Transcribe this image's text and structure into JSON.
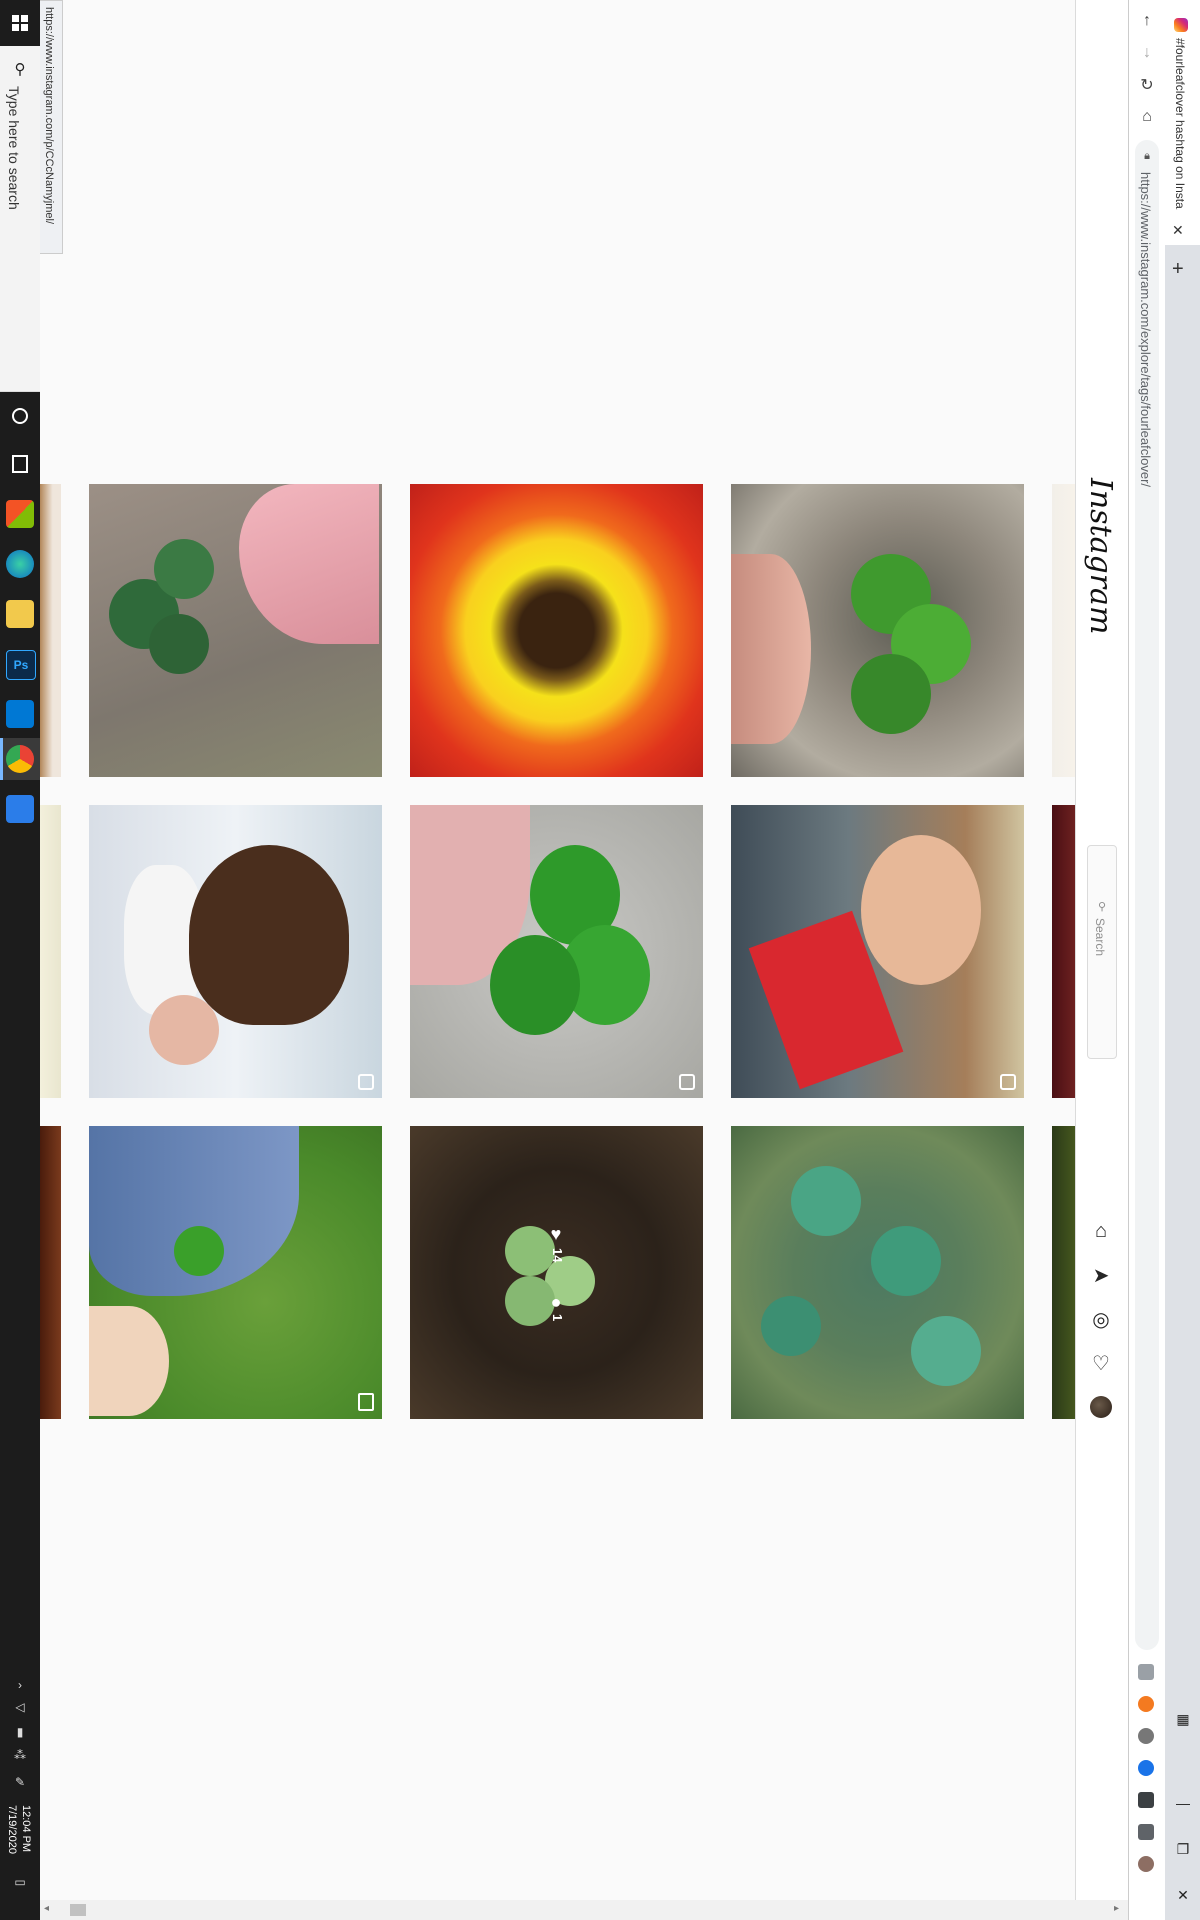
{
  "taskbar": {
    "search_placeholder": "Type here to search",
    "time": "12:04 PM",
    "date": "7/19/2020",
    "apps": [
      {
        "name": "start-icon"
      },
      {
        "name": "cortana-icon"
      },
      {
        "name": "task-view-icon"
      },
      {
        "name": "microsoft-store-icon"
      },
      {
        "name": "edge-icon"
      },
      {
        "name": "file-explorer-icon"
      },
      {
        "name": "photoshop-icon",
        "label": "Ps"
      },
      {
        "name": "vscode-icon"
      },
      {
        "name": "chrome-icon"
      },
      {
        "name": "settings-app-icon"
      }
    ]
  },
  "status_url": "https://www.instagram.com/p/CCcNamyjmel/",
  "browser": {
    "tab_title": "#fourleafclover hashtag on Insta...",
    "url": "https://www.instagram.com/explore/tags/fourleafclover/",
    "close_glyph": "✕",
    "new_tab_glyph": "+"
  },
  "instagram": {
    "logo": "Instagram",
    "search_placeholder": "Search",
    "post_likes": "14",
    "post_comments": "1"
  },
  "colors": {
    "page_bg": "#fafafa",
    "taskbar_bg": "#1c1c1c",
    "chrome_bg": "#dee1e6"
  }
}
